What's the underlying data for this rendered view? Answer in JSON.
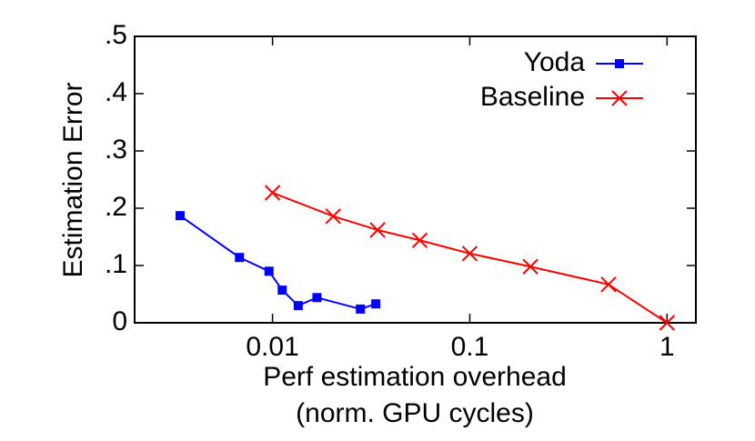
{
  "chart_data": {
    "type": "line",
    "ylabel": "Estimation Error",
    "xlabel": [
      "Perf estimation overhead",
      "(norm. GPU cycles)"
    ],
    "xscale": "log",
    "xlim": [
      0.002,
      1.4
    ],
    "xticks": [
      0.01,
      0.1,
      1
    ],
    "ylim": [
      0,
      0.5
    ],
    "yticks": [
      0,
      {
        "value": 0.1,
        "label": ".1"
      },
      {
        "value": 0.2,
        "label": ".2"
      },
      {
        "value": 0.3,
        "label": ".3"
      },
      {
        "value": 0.4,
        "label": ".4"
      },
      {
        "value": 0.5,
        "label": ".5"
      }
    ],
    "legend": "top-right",
    "series": [
      {
        "name": "Yoda",
        "color": "#0000ff",
        "marker": "square",
        "x": [
          0.0034,
          0.0068,
          0.0096,
          0.0112,
          0.0135,
          0.0168,
          0.0279,
          0.0334
        ],
        "values": [
          0.187,
          0.114,
          0.09,
          0.057,
          0.03,
          0.044,
          0.024,
          0.033
        ]
      },
      {
        "name": "Baseline",
        "color": "#ff0000",
        "marker": "x",
        "x": [
          0.01,
          0.0203,
          0.0341,
          0.0558,
          0.1,
          0.203,
          0.505,
          1
        ],
        "values": [
          0.227,
          0.186,
          0.162,
          0.144,
          0.121,
          0.098,
          0.067,
          0
        ]
      }
    ]
  }
}
